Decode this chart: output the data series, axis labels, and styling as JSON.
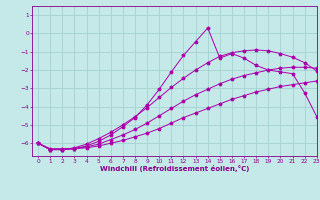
{
  "xlabel": "Windchill (Refroidissement éolien,°C)",
  "bg_color": "#c5e8e8",
  "grid_color": "#9ecece",
  "line_color": "#aa00aa",
  "xlim": [
    -0.5,
    23
  ],
  "ylim": [
    -6.7,
    1.5
  ],
  "xticks": [
    0,
    1,
    2,
    3,
    4,
    5,
    6,
    7,
    8,
    9,
    10,
    11,
    12,
    13,
    14,
    15,
    16,
    17,
    18,
    19,
    20,
    21,
    22,
    23
  ],
  "yticks": [
    1,
    0,
    -1,
    -2,
    -3,
    -4,
    -5,
    -6
  ],
  "line1_x": [
    0,
    1,
    2,
    3,
    4,
    5,
    6,
    7,
    8,
    9,
    10,
    11,
    12,
    13,
    14,
    15,
    16,
    17,
    18,
    19,
    20,
    21,
    22,
    23
  ],
  "line1_y": [
    -6.0,
    -6.3,
    -6.3,
    -6.3,
    -6.25,
    -6.15,
    -6.0,
    -5.85,
    -5.65,
    -5.45,
    -5.2,
    -4.9,
    -4.6,
    -4.35,
    -4.1,
    -3.85,
    -3.6,
    -3.4,
    -3.2,
    -3.05,
    -2.9,
    -2.8,
    -2.7,
    -2.6
  ],
  "line2_x": [
    0,
    1,
    2,
    3,
    4,
    5,
    6,
    7,
    8,
    9,
    10,
    11,
    12,
    13,
    14,
    15,
    16,
    17,
    18,
    19,
    20,
    21,
    22,
    23
  ],
  "line2_y": [
    -6.0,
    -6.35,
    -6.35,
    -6.3,
    -6.2,
    -6.05,
    -5.8,
    -5.55,
    -5.25,
    -4.9,
    -4.5,
    -4.1,
    -3.7,
    -3.35,
    -3.05,
    -2.75,
    -2.5,
    -2.3,
    -2.15,
    -2.0,
    -1.9,
    -1.85,
    -1.85,
    -1.9
  ],
  "line3_x": [
    0,
    1,
    2,
    3,
    4,
    5,
    6,
    7,
    8,
    9,
    10,
    11,
    12,
    13,
    14,
    15,
    16,
    17,
    18,
    19,
    20,
    21,
    22,
    23
  ],
  "line3_y": [
    -6.0,
    -6.35,
    -6.35,
    -6.25,
    -6.05,
    -5.75,
    -5.4,
    -5.0,
    -4.55,
    -4.05,
    -3.5,
    -2.95,
    -2.45,
    -2.0,
    -1.6,
    -1.25,
    -1.05,
    -0.95,
    -0.9,
    -0.95,
    -1.1,
    -1.3,
    -1.6,
    -2.05
  ],
  "line4_x": [
    0,
    1,
    2,
    3,
    4,
    5,
    6,
    7,
    8,
    9,
    10,
    11,
    12,
    13,
    14,
    15,
    16,
    17,
    18,
    19,
    20,
    21,
    22,
    23
  ],
  "line4_y": [
    -6.0,
    -6.35,
    -6.35,
    -6.3,
    -6.15,
    -5.9,
    -5.55,
    -5.1,
    -4.6,
    -3.9,
    -3.05,
    -2.1,
    -1.2,
    -0.45,
    0.3,
    -1.35,
    -1.1,
    -1.35,
    -1.75,
    -2.0,
    -2.1,
    -2.2,
    -3.25,
    -4.55
  ]
}
